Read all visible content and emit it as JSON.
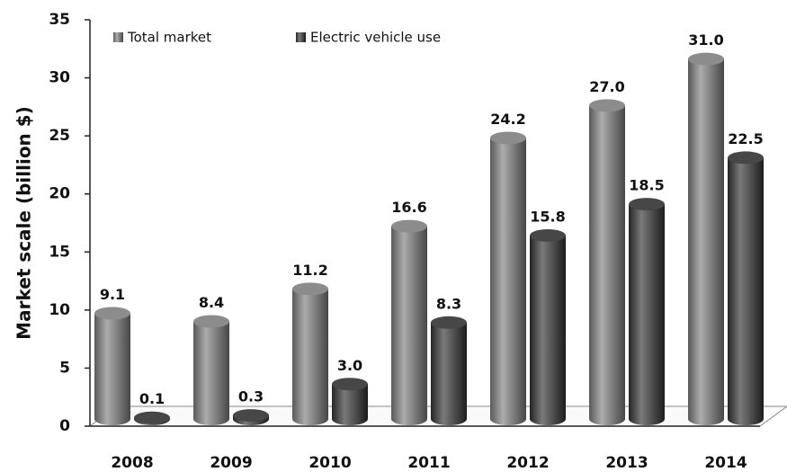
{
  "chart_data": {
    "type": "bar",
    "ylabel": "Market scale (billion $)",
    "categories": [
      "2008",
      "2009",
      "2010",
      "2011",
      "2012",
      "2013",
      "2014"
    ],
    "series": [
      {
        "name": "Total market",
        "color": "#7f7f7f",
        "values": [
          9.1,
          8.4,
          11.2,
          16.6,
          24.2,
          27.0,
          31.0
        ],
        "value_labels": [
          "9.1",
          "8.4",
          "11.2",
          "16.6",
          "24.2",
          "27.0",
          "31.0"
        ]
      },
      {
        "name": "Electric vehicle use",
        "color": "#333333",
        "values": [
          0.1,
          0.3,
          3.0,
          8.3,
          15.8,
          18.5,
          22.5
        ],
        "value_labels": [
          "0.1",
          "0.3",
          "3.0",
          "8.3",
          "15.8",
          "18.5",
          "22.5"
        ]
      }
    ],
    "ylim": [
      0,
      35
    ],
    "yticks": [
      0,
      5,
      10,
      15,
      20,
      25,
      30,
      35
    ],
    "legend": "top-left",
    "grid": false
  }
}
